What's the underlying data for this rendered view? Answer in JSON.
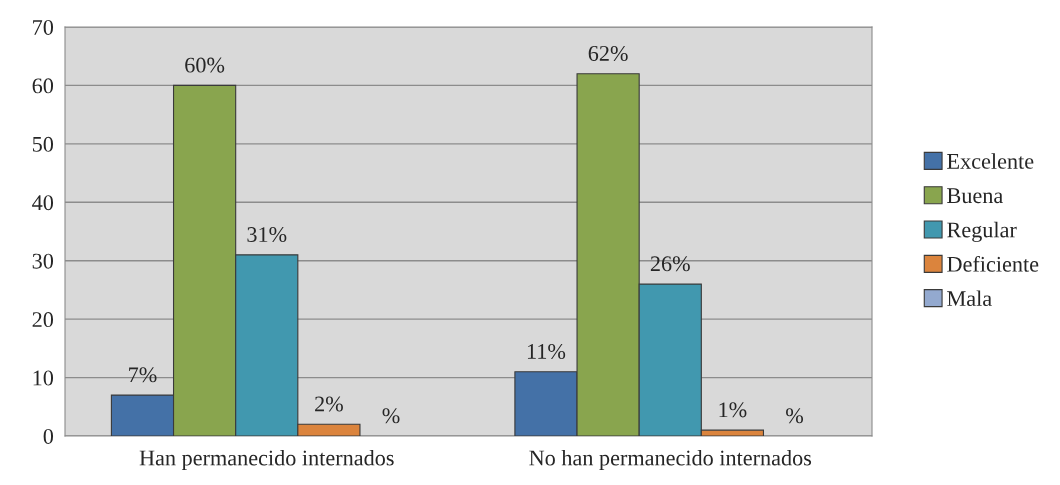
{
  "chart_data": {
    "type": "bar",
    "categories": [
      "Han permanecido internados",
      "No han permanecido internados"
    ],
    "series": [
      {
        "name": "Excelente",
        "color": "#4471a7",
        "values": [
          7,
          11
        ],
        "value_labels": [
          "7%",
          "11%"
        ]
      },
      {
        "name": "Buena",
        "color": "#89a54e",
        "values": [
          60,
          62
        ],
        "value_labels": [
          "60%",
          "62%"
        ]
      },
      {
        "name": "Regular",
        "color": "#4198af",
        "values": [
          31,
          26
        ],
        "value_labels": [
          "31%",
          "26%"
        ]
      },
      {
        "name": "Deficiente",
        "color": "#db843d",
        "values": [
          2,
          1
        ],
        "value_labels": [
          "2%",
          "1%"
        ]
      },
      {
        "name": "Mala",
        "color": "#93a9cf",
        "values": [
          null,
          null
        ],
        "value_labels": [
          "%",
          "%"
        ]
      }
    ],
    "ylim": [
      0,
      70
    ],
    "yticks": [
      0,
      10,
      20,
      30,
      40,
      50,
      60,
      70
    ],
    "grid": "y",
    "legend": "right"
  }
}
